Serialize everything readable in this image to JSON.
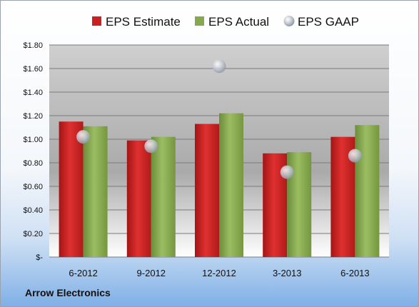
{
  "company_label": "Arrow Electronics",
  "colors": {
    "estimate": "#cc2020",
    "actual": "#86a84e",
    "gaap": "#c0c4cc"
  },
  "chart_data": {
    "type": "bar",
    "categories": [
      "6-2012",
      "9-2012",
      "12-2012",
      "3-2013",
      "6-2013"
    ],
    "series": [
      {
        "name": "EPS Estimate",
        "type": "bar",
        "values": [
          1.15,
          0.99,
          1.13,
          0.88,
          1.02
        ]
      },
      {
        "name": "EPS Actual",
        "type": "bar",
        "values": [
          1.11,
          1.02,
          1.22,
          0.89,
          1.12
        ]
      },
      {
        "name": "EPS GAAP",
        "type": "scatter",
        "values": [
          1.02,
          0.94,
          1.62,
          0.72,
          0.86
        ]
      }
    ],
    "y_ticks": [
      "$-",
      "$0.20",
      "$0.40",
      "$0.60",
      "$0.80",
      "$1.00",
      "$1.20",
      "$1.40",
      "$1.60",
      "$1.80"
    ],
    "ylim": [
      0,
      1.8
    ],
    "grid": true,
    "legend": "top"
  }
}
